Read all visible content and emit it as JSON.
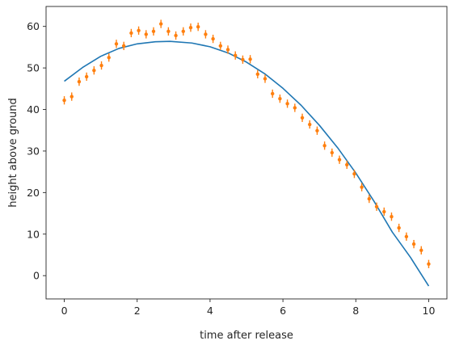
{
  "chart_data": {
    "type": "scatter",
    "xlabel": "time after release",
    "ylabel": "height above ground",
    "xlim": [
      -0.5,
      10.5
    ],
    "ylim": [
      -5.6,
      64.8
    ],
    "xticks": [
      0,
      2,
      4,
      6,
      8,
      10
    ],
    "yticks": [
      0,
      10,
      20,
      30,
      40,
      50,
      60
    ],
    "grid": false,
    "legend": "none",
    "series": [
      {
        "kind": "line",
        "color": "#1f77b4",
        "x": [
          0,
          0.5,
          1,
          1.5,
          2,
          2.5,
          2.9,
          3.5,
          4,
          4.5,
          5,
          5.5,
          6,
          6.5,
          7,
          7.5,
          8,
          8.5,
          9,
          9.5,
          10
        ],
        "y": [
          46.8,
          50.1,
          52.8,
          54.7,
          55.8,
          56.3,
          56.4,
          56.0,
          55.1,
          53.6,
          51.4,
          48.6,
          45.1,
          41.0,
          36.2,
          30.8,
          24.7,
          17.9,
          10.5,
          4.4,
          -2.5
        ]
      },
      {
        "kind": "errorbar",
        "color": "#ff7f0e",
        "yerr": 1.0,
        "x": [
          0,
          0.204,
          0.408,
          0.612,
          0.816,
          1.02,
          1.224,
          1.429,
          1.633,
          1.837,
          2.041,
          2.245,
          2.449,
          2.653,
          2.857,
          3.061,
          3.265,
          3.469,
          3.673,
          3.878,
          4.082,
          4.286,
          4.49,
          4.694,
          4.898,
          5.102,
          5.306,
          5.51,
          5.714,
          5.918,
          6.122,
          6.327,
          6.531,
          6.735,
          6.939,
          7.143,
          7.347,
          7.551,
          7.755,
          7.959,
          8.163,
          8.367,
          8.571,
          8.776,
          8.98,
          9.184,
          9.388,
          9.592,
          9.796,
          10
        ],
        "y": [
          42.2,
          43.1,
          46.7,
          47.9,
          49.4,
          50.6,
          52.5,
          55.8,
          55.3,
          58.4,
          59.0,
          58.1,
          58.8,
          60.6,
          58.8,
          57.8,
          58.8,
          59.7,
          59.9,
          58.1,
          57.0,
          55.3,
          54.4,
          53.0,
          52.0,
          52.1,
          48.5,
          47.4,
          43.8,
          42.6,
          41.4,
          40.4,
          38.0,
          36.4,
          34.9,
          31.3,
          29.6,
          27.9,
          26.7,
          24.5,
          21.3,
          18.5,
          16.6,
          15.4,
          14.2,
          11.5,
          9.4,
          7.6,
          6.1,
          2.8
        ]
      }
    ]
  }
}
